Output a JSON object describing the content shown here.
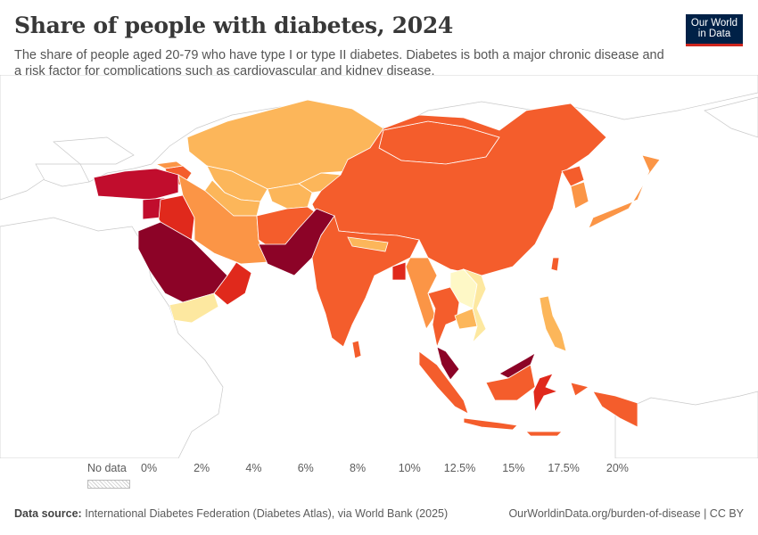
{
  "header": {
    "title": "Share of people with diabetes, 2024",
    "subtitle": "The share of people aged 20-79 who have type I or type II diabetes. Diabetes is both a major chronic disease and a risk factor for complications such as cardiovascular and kidney disease."
  },
  "logo": {
    "line1": "Our World",
    "line2": "in Data",
    "bg": "#002147",
    "accent": "#ce261e"
  },
  "legend": {
    "no_data_label": "No data",
    "ticks": [
      "0%",
      "2%",
      "4%",
      "6%",
      "8%",
      "10%",
      "12.5%",
      "15%",
      "17.5%",
      "20%"
    ],
    "colors": [
      "#fef8c6",
      "#fde8a0",
      "#fdd07a",
      "#fcb65a",
      "#fb9546",
      "#f45d2c",
      "#e0291c",
      "#c10d2d",
      "#8c0327",
      "#6a0020"
    ]
  },
  "footer": {
    "source_label": "Data source:",
    "source_text": "International Diabetes Federation (Diabetes Atlas), via World Bank (2025)",
    "right_text": "OurWorldinData.org/burden-of-disease | CC BY"
  },
  "chart_data": {
    "type": "choropleth",
    "unit": "%",
    "year": 2024,
    "legend_bins": [
      0,
      2,
      4,
      6,
      8,
      10,
      12.5,
      15,
      17.5,
      20
    ],
    "regions": [
      {
        "name": "Kazakhstan",
        "bin": "6-8%"
      },
      {
        "name": "Uzbekistan",
        "bin": "6-8%"
      },
      {
        "name": "Turkmenistan",
        "bin": "6-8%"
      },
      {
        "name": "Kyrgyzstan",
        "bin": "6-8%"
      },
      {
        "name": "Tajikistan",
        "bin": "6-8%"
      },
      {
        "name": "Mongolia",
        "bin": "10-12.5%"
      },
      {
        "name": "China",
        "bin": "10-12.5%"
      },
      {
        "name": "Turkey",
        "bin": "15-17.5%"
      },
      {
        "name": "Iran",
        "bin": "8-10%"
      },
      {
        "name": "Iraq",
        "bin": "12.5-15%"
      },
      {
        "name": "Syria",
        "bin": "15-17.5%"
      },
      {
        "name": "Saudi Arabia",
        "bin": "17.5-20%"
      },
      {
        "name": "Yemen",
        "bin": "4-6%"
      },
      {
        "name": "Oman",
        "bin": "12.5-15%"
      },
      {
        "name": "United Arab Emirates",
        "bin": "15-17.5%"
      },
      {
        "name": "Afghanistan",
        "bin": "10-12.5%"
      },
      {
        "name": "Pakistan",
        "bin": "17.5-20%"
      },
      {
        "name": "India",
        "bin": "10-12.5%"
      },
      {
        "name": "Nepal",
        "bin": "6-8%"
      },
      {
        "name": "Bangladesh",
        "bin": "12.5-15%"
      },
      {
        "name": "Sri Lanka",
        "bin": "10-12.5%"
      },
      {
        "name": "Myanmar",
        "bin": "8-10%"
      },
      {
        "name": "Thailand",
        "bin": "10-12.5%"
      },
      {
        "name": "Laos",
        "bin": "2-4%"
      },
      {
        "name": "Cambodia",
        "bin": "6-8%"
      },
      {
        "name": "Vietnam",
        "bin": "4-6%"
      },
      {
        "name": "Malaysia",
        "bin": "17.5-20%"
      },
      {
        "name": "Indonesia",
        "bin": "10-12.5%"
      },
      {
        "name": "Philippines",
        "bin": "6-8%"
      },
      {
        "name": "Papua New Guinea",
        "bin": "10-12.5%"
      },
      {
        "name": "South Korea",
        "bin": "8-10%"
      },
      {
        "name": "North Korea",
        "bin": "10-12.5%"
      },
      {
        "name": "Japan",
        "bin": "8-10%"
      },
      {
        "name": "Azerbaijan",
        "bin": "10-12.5%"
      },
      {
        "name": "Georgia",
        "bin": "8-10%"
      },
      {
        "name": "Armenia",
        "bin": "10-12.5%"
      }
    ]
  }
}
